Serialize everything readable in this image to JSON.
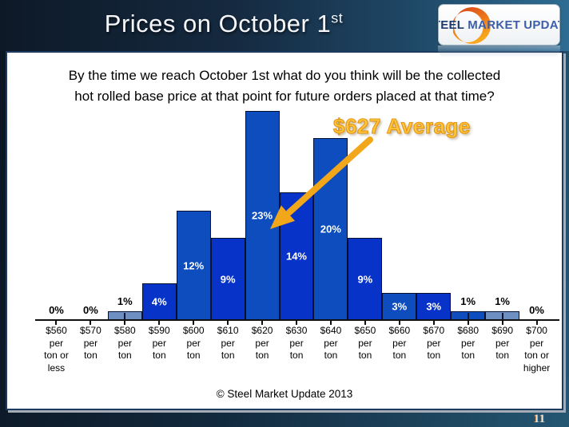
{
  "slide": {
    "page_number": "11"
  },
  "header": {
    "title": "Prices on October 1",
    "title_superscript": "st",
    "logo": {
      "word1": "STEEL",
      "word2": "MARKET",
      "word3": "UPDATE"
    }
  },
  "question": {
    "line1": "By the time we reach October 1st what do you think will be the collected",
    "line2": "hot rolled base price at that point for future orders placed at that time?"
  },
  "annotation": {
    "label": "$627 Average"
  },
  "footer": {
    "copyright": "© Steel Market Update 2013"
  },
  "colors": {
    "deep_blue": "#0833C8",
    "medium_blue": "#0D4DBE",
    "steel_blue": "#6D8FC2",
    "arrow_gold": "#F2A71B",
    "annotation_yellow": "#FFC83D",
    "header_navy": "#15293F",
    "bar_border": "#061131"
  },
  "chart_data": {
    "type": "bar",
    "title": "Prices on October 1st",
    "xlabel": "",
    "ylabel": "",
    "ylim": [
      0,
      25
    ],
    "grid": false,
    "legend": false,
    "categories": [
      "$560 per ton or less",
      "$570 per ton",
      "$580 per ton",
      "$590 per ton",
      "$600 per ton",
      "$610 per ton",
      "$620 per ton",
      "$630 per ton",
      "$640 per ton",
      "$650 per ton",
      "$660 per ton",
      "$670 per ton",
      "$680 per ton",
      "$690 per ton",
      "$700 per ton or higher"
    ],
    "category_lines": [
      [
        "$560",
        "per",
        "ton or",
        "less"
      ],
      [
        "$570",
        "per",
        "ton"
      ],
      [
        "$580",
        "per",
        "ton"
      ],
      [
        "$590",
        "per",
        "ton"
      ],
      [
        "$600",
        "per",
        "ton"
      ],
      [
        "$610",
        "per",
        "ton"
      ],
      [
        "$620",
        "per",
        "ton"
      ],
      [
        "$630",
        "per",
        "ton"
      ],
      [
        "$640",
        "per",
        "ton"
      ],
      [
        "$650",
        "per",
        "ton"
      ],
      [
        "$660",
        "per",
        "ton"
      ],
      [
        "$670",
        "per",
        "ton"
      ],
      [
        "$680",
        "per",
        "ton"
      ],
      [
        "$690",
        "per",
        "ton"
      ],
      [
        "$700",
        "per",
        "ton or",
        "higher"
      ]
    ],
    "values": [
      0,
      0,
      1,
      4,
      12,
      9,
      23,
      14,
      20,
      9,
      3,
      3,
      1,
      1,
      0
    ],
    "value_labels": [
      "0%",
      "0%",
      "1%",
      "4%",
      "12%",
      "9%",
      "23%",
      "14%",
      "20%",
      "9%",
      "3%",
      "3%",
      "1%",
      "1%",
      "0%"
    ],
    "bar_colors": [
      "#0D4DBE",
      "#0D4DBE",
      "#6D8FC2",
      "#0833C8",
      "#0D4DBE",
      "#0833C8",
      "#0D4DBE",
      "#0833C8",
      "#0D4DBE",
      "#0833C8",
      "#0D4DBE",
      "#0833C8",
      "#0D4DBE",
      "#6D8FC2",
      "#0D4DBE"
    ],
    "annotation": "$627 Average",
    "label_inside_threshold": 3
  }
}
